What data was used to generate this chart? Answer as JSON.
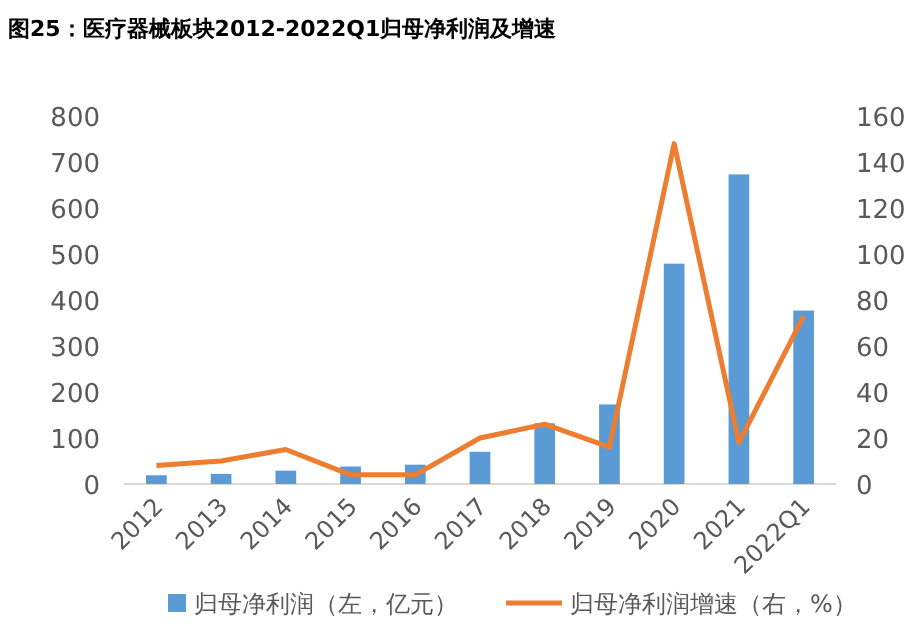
{
  "chart_data": {
    "type": "bar",
    "title": "图25：医疗器械板块2012-2022Q1归母净利润及增速",
    "categories": [
      "2012",
      "2013",
      "2014",
      "2015",
      "2016",
      "2017",
      "2018",
      "2019",
      "2020",
      "2021",
      "2022Q1"
    ],
    "series": [
      {
        "name": "归母净利润（左，亿元）",
        "color": "#5b9bd5",
        "values": [
          19,
          22,
          29,
          38,
          42,
          70,
          132,
          173,
          479,
          673,
          377
        ]
      },
      {
        "name": "归母净利润增速（右，%）",
        "type": "line",
        "axis": "y2",
        "color": "#ed7d31",
        "values": [
          8,
          10,
          15,
          4,
          4,
          20,
          26,
          16,
          148,
          18,
          73
        ]
      }
    ],
    "ylim": [
      0,
      800
    ],
    "yticks": [
      0,
      100,
      200,
      300,
      400,
      500,
      600,
      700,
      800
    ],
    "y2lim": [
      0,
      160
    ],
    "y2ticks": [
      0,
      20,
      40,
      60,
      80,
      100,
      120,
      140,
      160
    ],
    "legend": "bottom"
  }
}
